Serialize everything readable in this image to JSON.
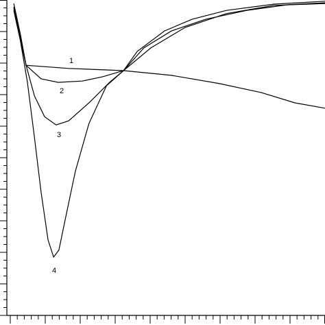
{
  "chart_data": {
    "type": "line",
    "xlim": [
      0,
      9
    ],
    "ylim": [
      0,
      10
    ],
    "xticks": [
      0,
      0.2,
      0.4,
      0.6,
      0.8,
      1,
      1.2,
      1.4,
      1.6,
      1.8,
      2,
      2.2,
      2.4,
      2.6,
      2.8,
      3,
      3.2,
      3.4,
      3.6,
      3.8,
      4,
      4.2,
      4.4,
      4.6,
      4.8,
      5,
      5.2,
      5.4,
      5.6,
      5.8,
      6,
      6.2,
      6.4,
      6.6,
      6.8,
      7,
      7.2,
      7.4,
      7.6,
      7.8,
      8,
      8.2,
      8.4,
      8.6,
      8.8,
      9
    ],
    "yticks": [
      0,
      0.25,
      0.5,
      0.75,
      1,
      1.25,
      1.5,
      1.75,
      2,
      2.25,
      2.5,
      2.75,
      3,
      3.25,
      3.5,
      3.75,
      4,
      4.25,
      4.5,
      4.75,
      5,
      5.25,
      5.5,
      5.75,
      6,
      6.25,
      6.5,
      6.75,
      7,
      7.25,
      7.5,
      7.75,
      8,
      8.25,
      8.5,
      8.75,
      9,
      9.25,
      9.5,
      9.75,
      10
    ],
    "series": [
      {
        "name": "1",
        "color": "#000000",
        "x": [
          0.1,
          0.29,
          0.45,
          1.67,
          3.24,
          4.61,
          5.98,
          7.16,
          8.14,
          9
        ],
        "values": [
          9.89,
          8.91,
          7.93,
          7.83,
          7.76,
          7.61,
          7.35,
          7.07,
          6.74,
          6.57
        ]
      },
      {
        "name": "2",
        "color": "#000000",
        "x": [
          0.1,
          0.45,
          0.88,
          1.37,
          2.06,
          2.65,
          3.24,
          4.02,
          5,
          6.18,
          7.55,
          9
        ],
        "values": [
          9.78,
          7.93,
          7.5,
          7.39,
          7.43,
          7.57,
          7.76,
          8.48,
          9.13,
          9.57,
          9.83,
          9.89
        ]
      },
      {
        "name": "3",
        "color": "#000000",
        "x": [
          0.1,
          0.45,
          0.69,
          0.98,
          1.31,
          1.67,
          2.25,
          2.84,
          3.24,
          3.82,
          4.61,
          5.59,
          6.76,
          7.94,
          9
        ],
        "values": [
          9.74,
          7.93,
          6.96,
          6.3,
          6.04,
          6.17,
          6.74,
          7.39,
          7.76,
          8.48,
          9.02,
          9.39,
          9.67,
          9.85,
          9.91
        ]
      },
      {
        "name": "4",
        "color": "#000000",
        "x": [
          0.1,
          0.29,
          0.49,
          0.69,
          0.88,
          1.08,
          1.24,
          1.39,
          1.57,
          1.86,
          2.25,
          2.75,
          3.24,
          3.63,
          4.41,
          5.2,
          6.18,
          7.55,
          9
        ],
        "values": [
          9.67,
          8.7,
          7.39,
          5.65,
          3.91,
          2.39,
          1.85,
          2.07,
          3.04,
          4.57,
          6.09,
          7.28,
          7.76,
          8.37,
          9.02,
          9.39,
          9.67,
          9.87,
          9.96
        ]
      }
    ]
  }
}
